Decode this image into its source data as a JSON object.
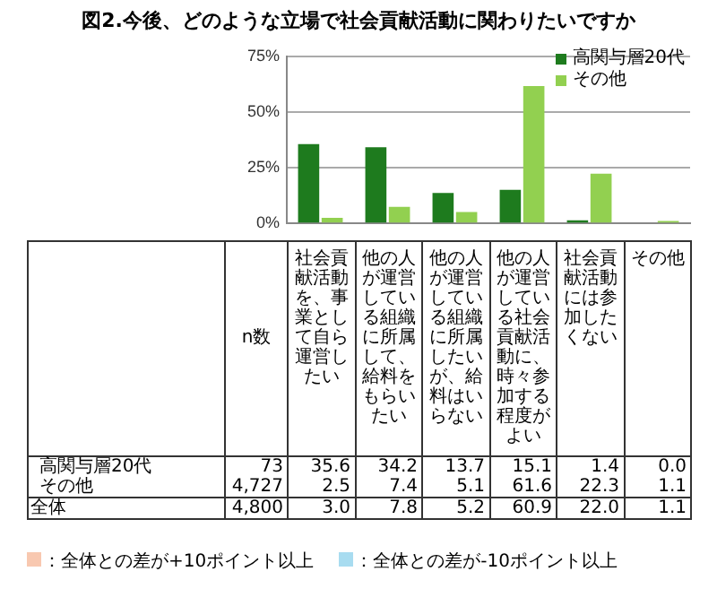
{
  "chart_data": {
    "type": "bar",
    "title": "図2.今後、どのような立場で社会貢献活動に関わりたいですか",
    "categories": [
      "社会貢献活動を、事業として自ら運営したい",
      "他の人が運営している組織に所属して、給料をもらいたい",
      "他の人が運営している組織に所属したいが、給料はいらない",
      "他の人が運営している社会貢献活動に、時々参加する程度がよい",
      "社会貢献活動には参加したくない",
      "その他"
    ],
    "series": [
      {
        "name": "高関与層20代",
        "color": "#1e7b1e",
        "values": [
          35.6,
          34.2,
          13.7,
          15.1,
          1.4,
          0.0
        ]
      },
      {
        "name": "その他",
        "color": "#92d050",
        "values": [
          2.5,
          7.4,
          5.1,
          61.6,
          22.3,
          1.1
        ]
      }
    ],
    "ylim": [
      0,
      75
    ],
    "yticks": [
      {
        "value": 0,
        "label": "0%"
      },
      {
        "value": 25,
        "label": "25%"
      },
      {
        "value": 50,
        "label": "50%"
      },
      {
        "value": 75,
        "label": "75%"
      }
    ],
    "grid": "y",
    "legend": "top right",
    "tick_labels": "y",
    "annotations": [
      "n数",
      "73",
      "35.6",
      "34.2",
      "13.7",
      "15.1",
      "1.4",
      "0.0",
      "4,727",
      "2.5",
      "7.4",
      "5.1",
      "61.6",
      "22.3",
      "1.1",
      "全体",
      "4,800",
      "3.0",
      "7.8",
      "5.2",
      "60.9",
      "22.0",
      "1.1",
      "：全体との差が+10ポイント以上",
      "：全体との差が-10ポイント以上"
    ]
  }
}
